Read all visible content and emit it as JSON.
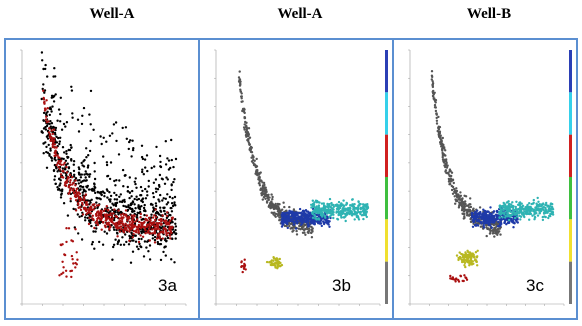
{
  "headers": [
    "Well-A",
    "Well-A",
    "Well-B"
  ],
  "chart_data": [
    {
      "type": "scatter",
      "panel_label": "3a",
      "series": [
        {
          "color": "#000000",
          "kind": "cloud_wide",
          "seed": 11,
          "n": 900
        },
        {
          "color": "#aa1010",
          "kind": "curve_band",
          "seed": 17,
          "n": 520
        }
      ],
      "colorbar": null
    },
    {
      "type": "scatter",
      "panel_label": "3b",
      "series": [
        {
          "color": "#555555",
          "kind": "curve",
          "seed": 21,
          "n": 420
        },
        {
          "color": "#1f3aa8",
          "kind": "plateau_left",
          "seed": 23,
          "n": 360
        },
        {
          "color": "#2fb3b3",
          "kind": "plateau_right",
          "seed": 29,
          "n": 320
        },
        {
          "color": "#b8b820",
          "kind": "blob_low",
          "seed": 31,
          "n": 50
        },
        {
          "color": "#aa1010",
          "kind": "blob_red",
          "seed": 37,
          "n": 14
        }
      ],
      "colorbar": [
        "#2b3fb5",
        "#35d0ea",
        "#d02020",
        "#3fbf3f",
        "#f0e030",
        "#777777"
      ]
    },
    {
      "type": "scatter",
      "panel_label": "3c",
      "series": [
        {
          "color": "#555555",
          "kind": "curve",
          "seed": 41,
          "n": 420
        },
        {
          "color": "#1f3aa8",
          "kind": "plateau_left",
          "seed": 43,
          "n": 320
        },
        {
          "color": "#2fb3b3",
          "kind": "plateau_right",
          "seed": 47,
          "n": 300
        },
        {
          "color": "#b8b820",
          "kind": "blob_low_big",
          "seed": 53,
          "n": 110
        },
        {
          "color": "#aa1010",
          "kind": "blob_red2",
          "seed": 59,
          "n": 22
        }
      ],
      "colorbar": [
        "#2b3fb5",
        "#35d0ea",
        "#d02020",
        "#3fbf3f",
        "#f0e030",
        "#777777"
      ]
    }
  ]
}
